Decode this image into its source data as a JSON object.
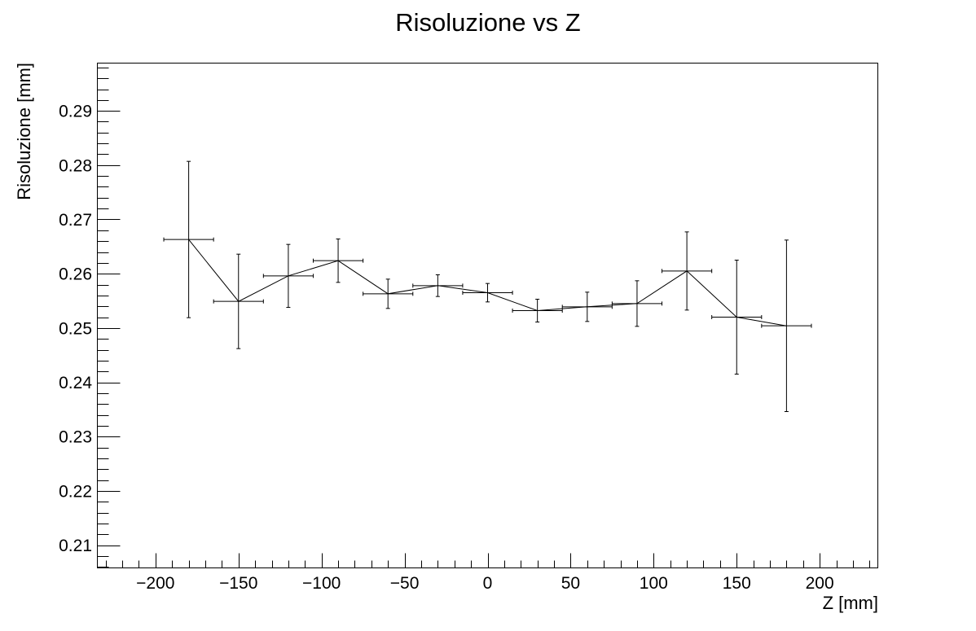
{
  "chart_data": {
    "type": "scatter",
    "title": "Risoluzione vs Z",
    "xlabel": "Z [mm]",
    "ylabel": "Risoluzione [mm]",
    "xlim": [
      -235,
      235
    ],
    "ylim": [
      0.2058,
      0.2988
    ],
    "x_major_ticks": [
      -200,
      -150,
      -100,
      -50,
      0,
      50,
      100,
      150,
      200
    ],
    "x_tick_labels": [
      "−200",
      "−150",
      "−100",
      "−50",
      "0",
      "50",
      "100",
      "150",
      "200"
    ],
    "x_minor_step": 10,
    "y_major_ticks": [
      0.21,
      0.22,
      0.23,
      0.24,
      0.25,
      0.26,
      0.27,
      0.28,
      0.29
    ],
    "y_tick_labels": [
      "0.21",
      "0.22",
      "0.23",
      "0.24",
      "0.25",
      "0.26",
      "0.27",
      "0.28",
      "0.29"
    ],
    "y_minor_step": 0.002,
    "grid": false,
    "connected": true,
    "series": [
      {
        "x": [
          -180,
          -150,
          -120,
          -90,
          -60,
          -30,
          0,
          30,
          60,
          90,
          120,
          150,
          180
        ],
        "y": [
          0.2663,
          0.2549,
          0.2596,
          0.2624,
          0.2563,
          0.2578,
          0.2565,
          0.2532,
          0.2539,
          0.2545,
          0.2605,
          0.252,
          0.2504
        ],
        "xerr": [
          15,
          15,
          15,
          15,
          15,
          15,
          15,
          15,
          15,
          15,
          15,
          15,
          15
        ],
        "yerr": [
          0.0144,
          0.0087,
          0.0058,
          0.004,
          0.0027,
          0.002,
          0.0017,
          0.0021,
          0.0027,
          0.0042,
          0.0072,
          0.0105,
          0.0158
        ]
      }
    ]
  }
}
